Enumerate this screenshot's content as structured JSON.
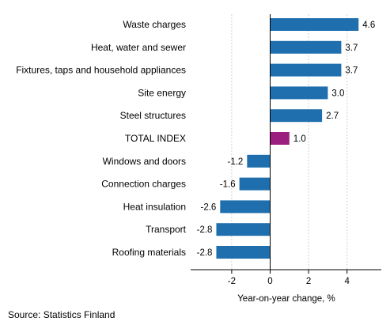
{
  "chart_data": {
    "type": "bar",
    "orientation": "horizontal",
    "title": "",
    "xlabel": "Year-on-year change, %",
    "ylabel": "",
    "xlim": [
      -4.2,
      5.8
    ],
    "xticks": [
      -2,
      0,
      2,
      4
    ],
    "xtick_labels": [
      "-2",
      "0",
      "2",
      "4"
    ],
    "grid": true,
    "categories": [
      "Waste charges",
      "Heat, water and sewer",
      "Fixtures, taps and household appliances",
      "Site energy",
      "Steel structures",
      "TOTAL INDEX",
      "Windows and doors",
      "Connection charges",
      "Heat insulation",
      "Transport",
      "Roofing materials"
    ],
    "values": [
      4.6,
      3.7,
      3.7,
      3.0,
      2.7,
      1.0,
      -1.2,
      -1.6,
      -2.6,
      -2.8,
      -2.8
    ],
    "value_labels": [
      "4.6",
      "3.7",
      "3.7",
      "3.0",
      "2.7",
      "1.0",
      "-1.2",
      "-1.6",
      "-2.6",
      "-2.8",
      "-2.8"
    ],
    "colors": {
      "default": "#1f6fae",
      "highlight": "#9b1f7f",
      "grid": "#d0d0d0",
      "axis": "#000000"
    },
    "highlight_category": "TOTAL INDEX"
  },
  "footer": {
    "source": "Source: Statistics Finland"
  }
}
